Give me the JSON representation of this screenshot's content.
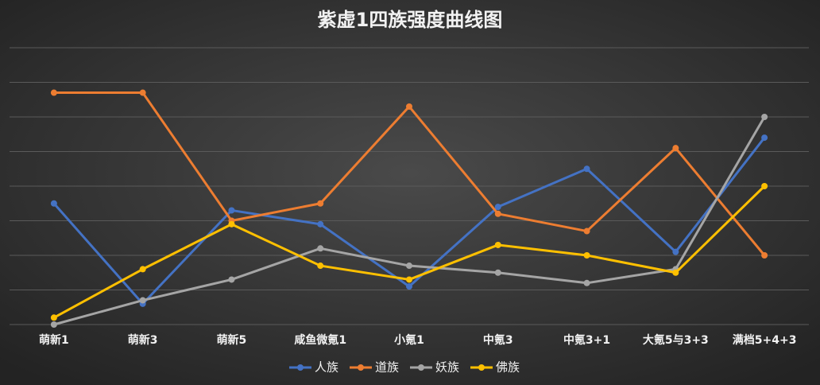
{
  "chart_data": {
    "type": "line",
    "title": "紫虚1四族强度曲线图",
    "categories": [
      "萌新1",
      "萌新3",
      "萌新5",
      "咸鱼微氪1",
      "小氪1",
      "中氪3",
      "中氪3+1",
      "大氪5与3+3",
      "满档5+4+3"
    ],
    "series": [
      {
        "name": "人族",
        "color": "#4472c4",
        "values": [
          3.5,
          0.6,
          3.3,
          2.9,
          1.1,
          3.4,
          4.5,
          2.1,
          5.4
        ]
      },
      {
        "name": "道族",
        "color": "#ed7d31",
        "values": [
          6.7,
          6.7,
          3.0,
          3.5,
          6.3,
          3.2,
          2.7,
          5.1,
          2.0
        ]
      },
      {
        "name": "妖族",
        "color": "#a5a5a5",
        "values": [
          0,
          0.7,
          1.3,
          2.2,
          1.7,
          1.5,
          1.2,
          1.6,
          6.0
        ]
      },
      {
        "name": "佛族",
        "color": "#ffc000",
        "values": [
          0.2,
          1.6,
          2.9,
          1.7,
          1.3,
          2.3,
          2.0,
          1.5,
          4.0
        ]
      }
    ],
    "ylim": [
      0,
      8
    ],
    "yticks": [
      0,
      1,
      2,
      3,
      4,
      5,
      6,
      7,
      8
    ],
    "grid": true,
    "legend": "bottom"
  }
}
